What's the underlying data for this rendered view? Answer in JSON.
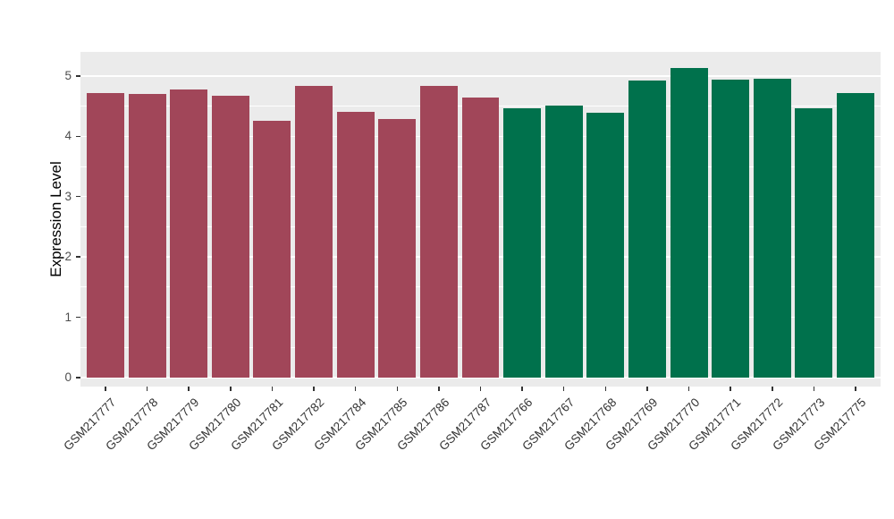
{
  "figure": {
    "background": "#FFFFFF",
    "panel_background": "#EBEBEB",
    "grid_color": "#FFFFFF",
    "axis_text_color": "#4D4D4D",
    "tick_color": "#333333"
  },
  "chart_data": {
    "type": "bar",
    "title": "",
    "xlabel": "",
    "ylabel": "Expression Level",
    "categories": [
      "GSM217777",
      "GSM217778",
      "GSM217779",
      "GSM217780",
      "GSM217781",
      "GSM217782",
      "GSM217784",
      "GSM217785",
      "GSM217786",
      "GSM217787",
      "GSM217766",
      "GSM217767",
      "GSM217768",
      "GSM217769",
      "GSM217770",
      "GSM217771",
      "GSM217772",
      "GSM217773",
      "GSM217775"
    ],
    "values": [
      4.72,
      4.7,
      4.78,
      4.68,
      4.26,
      4.83,
      4.4,
      4.29,
      4.83,
      4.64,
      4.47,
      4.51,
      4.39,
      4.92,
      5.13,
      4.94,
      4.96,
      4.47,
      4.72
    ],
    "groups": [
      "group1",
      "group1",
      "group1",
      "group1",
      "group1",
      "group1",
      "group1",
      "group1",
      "group1",
      "group1",
      "group2",
      "group2",
      "group2",
      "group2",
      "group2",
      "group2",
      "group2",
      "group2",
      "group2"
    ],
    "colors": {
      "group1": "#A14659",
      "group2": "#00714C"
    },
    "yticks": [
      0,
      1,
      2,
      3,
      4,
      5
    ],
    "ylim": [
      0,
      5.4
    ],
    "grid": true,
    "legend": "none",
    "bar_width_fraction": 0.9
  }
}
